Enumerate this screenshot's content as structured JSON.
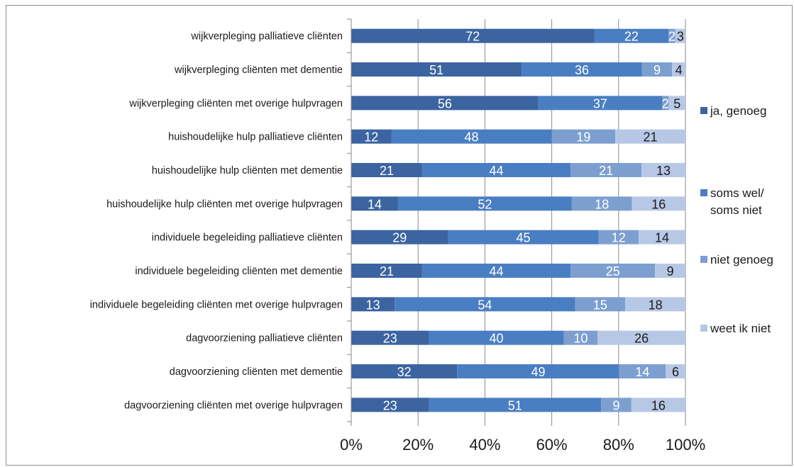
{
  "chart_data": {
    "type": "bar",
    "orientation": "horizontal",
    "stacked": "percent",
    "title": "",
    "xlabel": "",
    "ylabel": "",
    "xlim": [
      0,
      100
    ],
    "x_ticks": [
      "0%",
      "20%",
      "40%",
      "60%",
      "80%",
      "100%"
    ],
    "grid": "vertical",
    "legend_position": "right",
    "categories": [
      "wijkverpleging palliatieve cliënten",
      "wijkverpleging cliënten met dementie",
      "wijkverpleging cliënten met overige hulpvragen",
      "huishoudelijke hulp palliatieve cliënten",
      "huishoudelijke hulp cliënten met dementie",
      "huishoudelijke hulp cliënten met overige hulpvragen",
      "individuele begeleiding palliatieve cliënten",
      "individuele begeleiding cliënten met dementie",
      "individuele begeleiding cliënten met overige hulpvragen",
      "dagvoorziening palliatieve cliënten",
      "dagvoorziening cliënten met dementie",
      "dagvoorziening cliënten met overige hulpvragen"
    ],
    "series": [
      {
        "name": "ja, genoeg",
        "color": "#3b64a0",
        "label_color": "#ffffff",
        "values": [
          72,
          51,
          56,
          12,
          21,
          14,
          29,
          21,
          13,
          23,
          32,
          23
        ]
      },
      {
        "name": "soms wel/ soms niet",
        "color": "#4a7ec2",
        "label_color": "#ffffff",
        "values": [
          22,
          36,
          37,
          48,
          44,
          52,
          45,
          44,
          54,
          40,
          49,
          51
        ]
      },
      {
        "name": "niet genoeg",
        "color": "#7d9fd0",
        "label_color": "#ffffff",
        "values": [
          2,
          9,
          2,
          19,
          21,
          18,
          12,
          25,
          15,
          10,
          14,
          9
        ]
      },
      {
        "name": "weet ik niet",
        "color": "#b7c8e6",
        "label_color": "#1a1a1a",
        "values": [
          3,
          4,
          5,
          21,
          13,
          16,
          14,
          9,
          18,
          26,
          6,
          16
        ]
      }
    ],
    "legend_lines": [
      [
        "ja, genoeg"
      ],
      [
        "soms wel/",
        "soms niet"
      ],
      [
        "niet genoeg"
      ],
      [
        "weet ik niet"
      ]
    ]
  }
}
